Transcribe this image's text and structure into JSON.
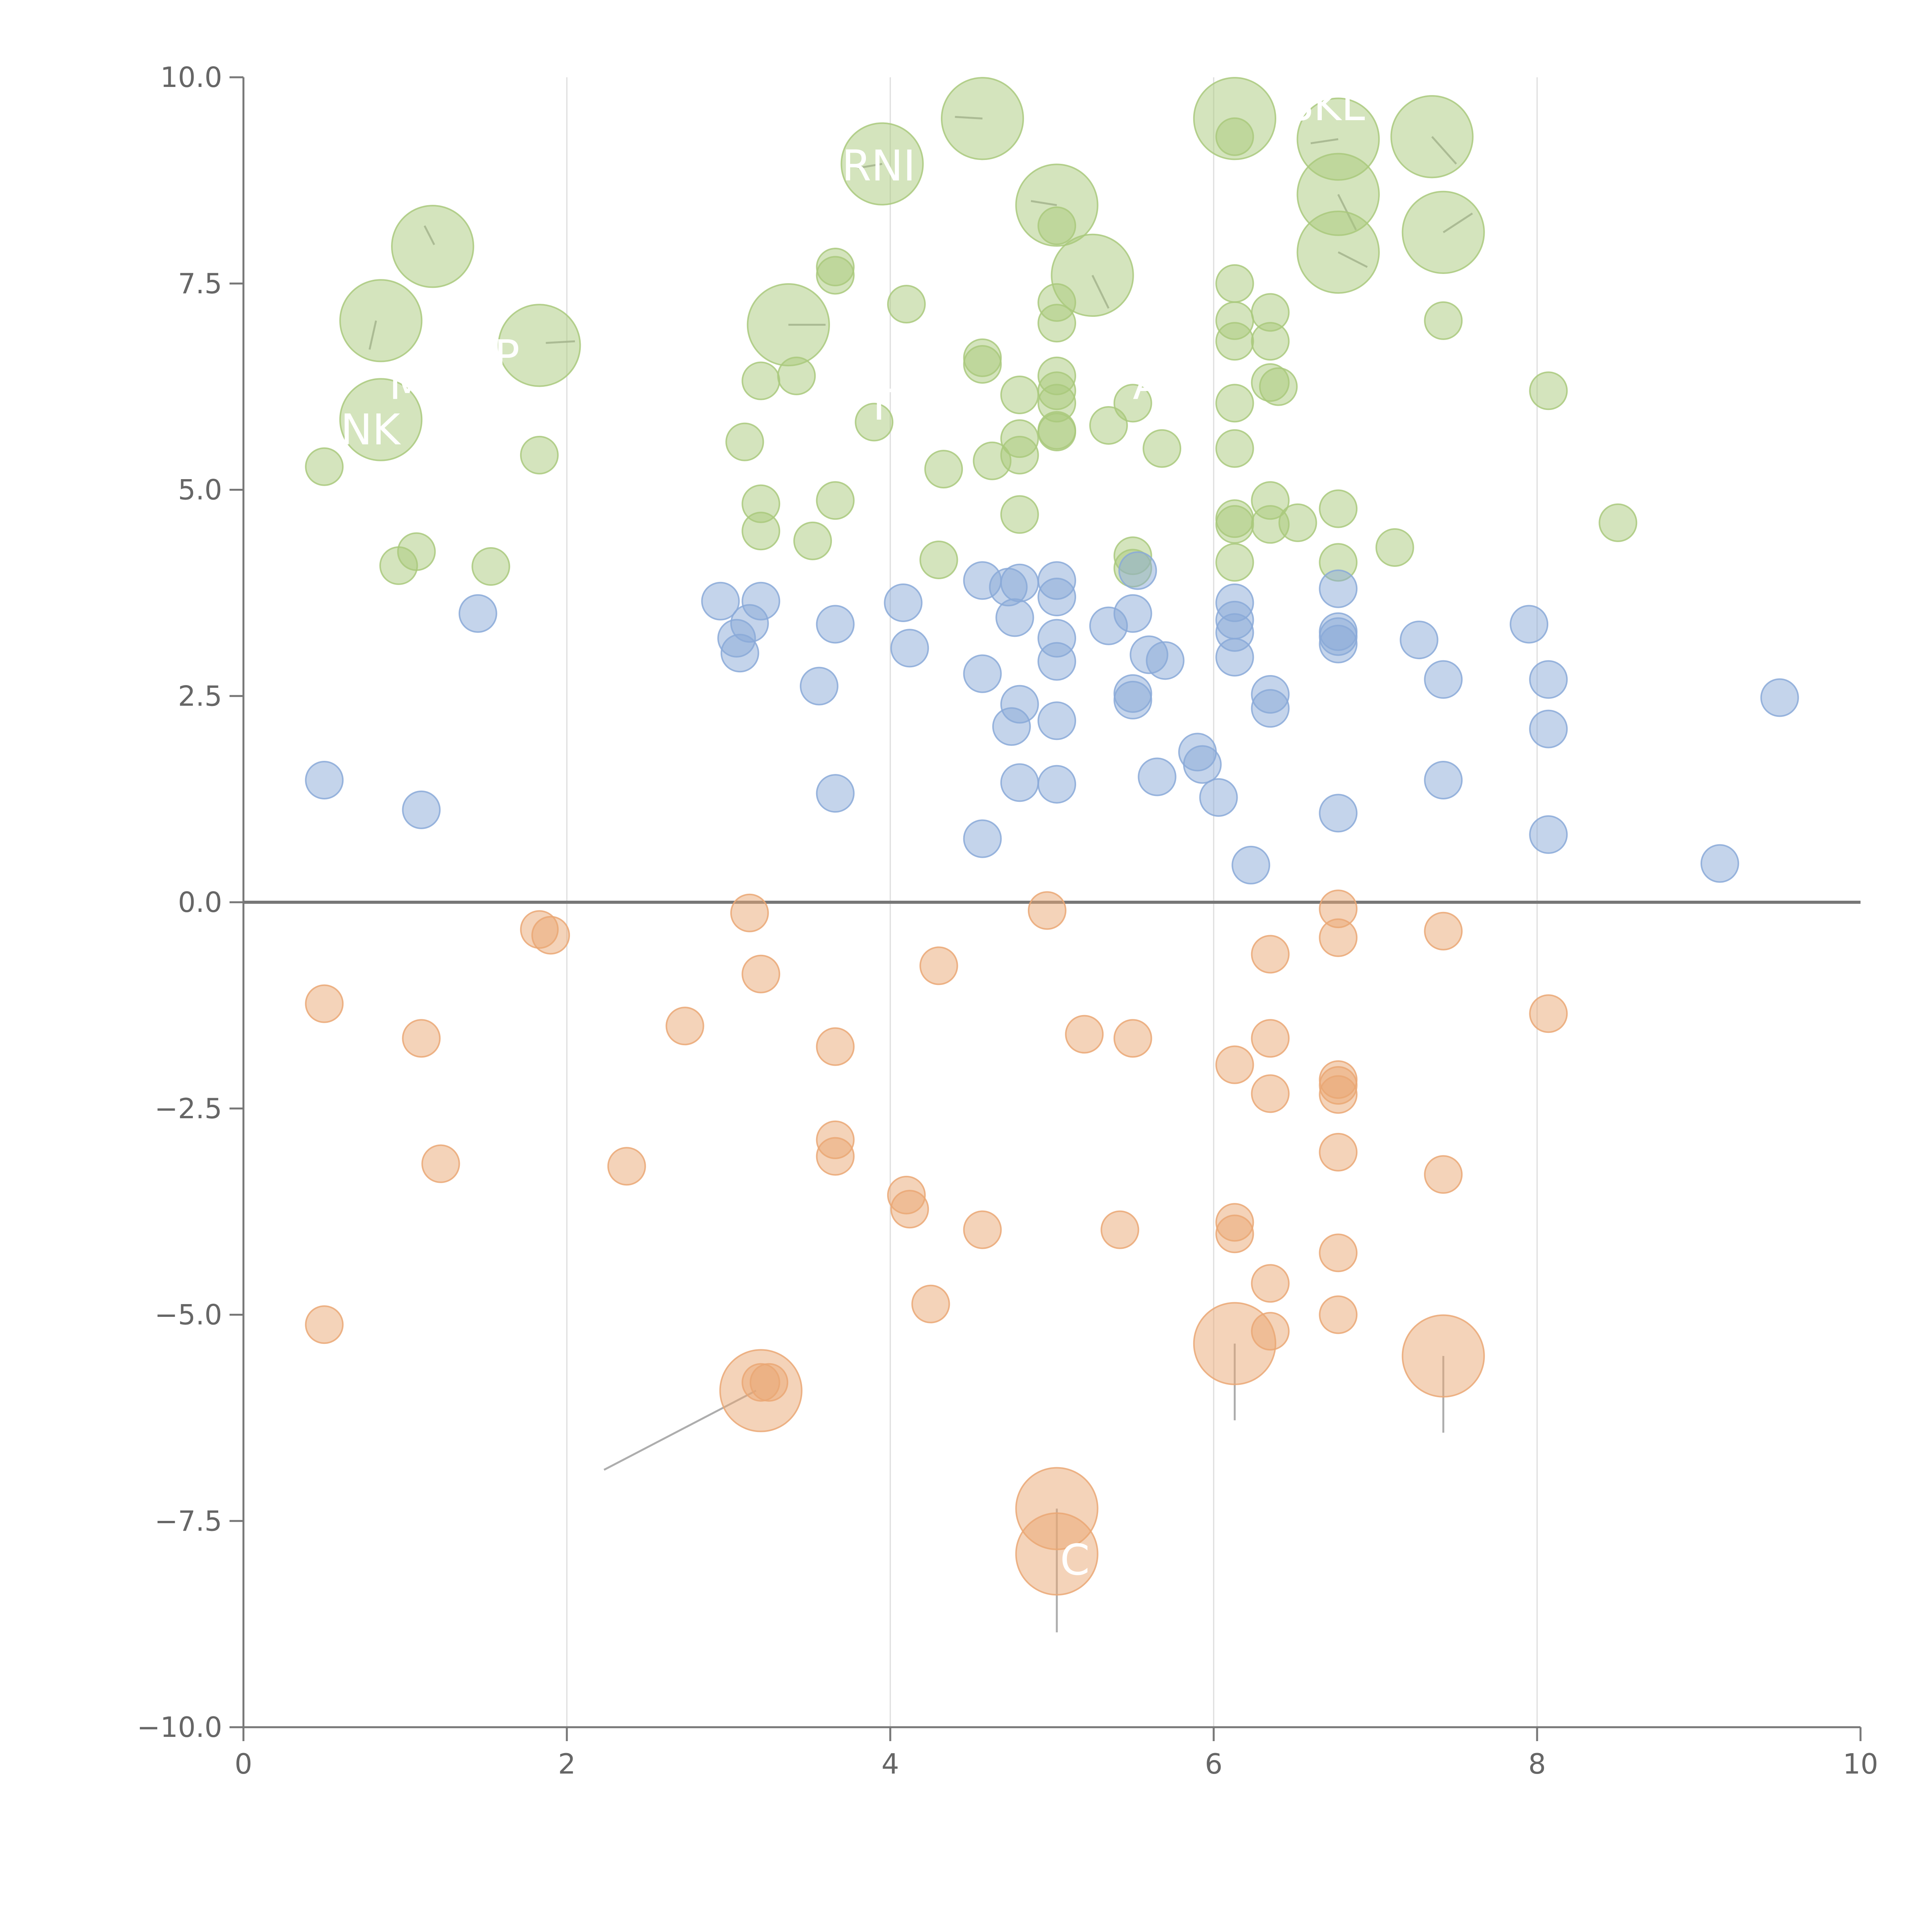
{
  "chart_data": {
    "type": "scatter",
    "title": "",
    "xlabel": "",
    "ylabel": "",
    "xlim": [
      0,
      10
    ],
    "ylim": [
      -10,
      10
    ],
    "xticks": [
      0,
      2,
      4,
      6,
      8,
      10
    ],
    "xtick_labels": [
      "0",
      "2",
      "4",
      "6",
      "8",
      "10"
    ],
    "yticks": [
      -10,
      -7.5,
      -5,
      -2.5,
      0,
      2.5,
      5,
      7.5,
      10
    ],
    "ytick_labels": [
      "−10.0",
      "−7.5",
      "−5.0",
      "−2.5",
      "0.0",
      "2.5",
      "5.0",
      "7.5",
      "10.0"
    ],
    "vertical_gridlines": [
      2,
      4,
      6,
      8
    ],
    "zero_line": 0,
    "size_scale": "relative bubble size",
    "series": [
      {
        "color": "#a9c97c",
        "points": [
          [
            0.85,
            7.05,
            2.2
          ],
          [
            1.17,
            7.95,
            2.2
          ],
          [
            1.83,
            6.75,
            2.2
          ],
          [
            0.85,
            5.85,
            2.2
          ],
          [
            3.95,
            8.95,
            2.2
          ],
          [
            4.57,
            9.5,
            2.2
          ],
          [
            5.03,
            8.45,
            2.2
          ],
          [
            3.37,
            7.0,
            2.2
          ],
          [
            5.25,
            7.6,
            2.2
          ],
          [
            6.13,
            9.5,
            2.2
          ],
          [
            6.77,
            9.25,
            2.2
          ],
          [
            7.35,
            9.28,
            2.2
          ],
          [
            6.77,
            8.58,
            2.2
          ],
          [
            7.42,
            8.12,
            2.2
          ],
          [
            6.77,
            7.88,
            2.2
          ],
          [
            0.5,
            5.28,
            1
          ],
          [
            0.96,
            4.08,
            1
          ],
          [
            1.07,
            4.25,
            1
          ],
          [
            1.53,
            4.07,
            1
          ],
          [
            1.83,
            5.42,
            1
          ],
          [
            3.1,
            5.58,
            1
          ],
          [
            3.2,
            6.32,
            1
          ],
          [
            3.2,
            4.83,
            1
          ],
          [
            3.2,
            4.5,
            1
          ],
          [
            3.42,
            6.38,
            1
          ],
          [
            3.52,
            4.38,
            1
          ],
          [
            3.66,
            7.7,
            1
          ],
          [
            3.66,
            7.6,
            1
          ],
          [
            3.66,
            4.87,
            1
          ],
          [
            3.9,
            5.82,
            1
          ],
          [
            4.1,
            7.25,
            1
          ],
          [
            4.3,
            4.15,
            1
          ],
          [
            4.33,
            5.25,
            1
          ],
          [
            4.57,
            6.6,
            1
          ],
          [
            4.57,
            6.52,
            1
          ],
          [
            4.63,
            5.35,
            1
          ],
          [
            4.8,
            6.15,
            1
          ],
          [
            4.8,
            5.62,
            1
          ],
          [
            4.8,
            5.42,
            1
          ],
          [
            4.8,
            4.7,
            1
          ],
          [
            5.03,
            8.2,
            1
          ],
          [
            5.03,
            7.27,
            1
          ],
          [
            5.03,
            7.02,
            1
          ],
          [
            5.03,
            6.38,
            1
          ],
          [
            5.03,
            6.2,
            1
          ],
          [
            5.03,
            6.05,
            1
          ],
          [
            5.03,
            5.72,
            1
          ],
          [
            5.03,
            5.7,
            1
          ],
          [
            5.35,
            5.78,
            1
          ],
          [
            5.5,
            6.05,
            1
          ],
          [
            5.5,
            4.2,
            1
          ],
          [
            5.5,
            4.05,
            1
          ],
          [
            5.68,
            5.5,
            1
          ],
          [
            6.13,
            9.28,
            1
          ],
          [
            6.13,
            7.5,
            1
          ],
          [
            6.13,
            7.05,
            1
          ],
          [
            6.13,
            6.8,
            1
          ],
          [
            6.13,
            6.05,
            1
          ],
          [
            6.13,
            5.5,
            1
          ],
          [
            6.13,
            4.65,
            1
          ],
          [
            6.13,
            4.58,
            1
          ],
          [
            6.13,
            4.12,
            1
          ],
          [
            6.35,
            7.15,
            1
          ],
          [
            6.35,
            6.8,
            1
          ],
          [
            6.35,
            6.3,
            1
          ],
          [
            6.35,
            4.87,
            1
          ],
          [
            6.35,
            4.58,
            1
          ],
          [
            6.4,
            6.25,
            1
          ],
          [
            6.52,
            4.6,
            1
          ],
          [
            6.77,
            4.77,
            1
          ],
          [
            6.77,
            4.12,
            1
          ],
          [
            7.12,
            4.3,
            1
          ],
          [
            7.42,
            7.05,
            1
          ],
          [
            8.07,
            6.2,
            1
          ],
          [
            8.5,
            4.6,
            1
          ]
        ]
      },
      {
        "color": "#89a9d8",
        "points": [
          [
            0.5,
            1.48,
            1
          ],
          [
            1.1,
            1.12,
            1
          ],
          [
            1.45,
            3.5,
            1
          ],
          [
            2.95,
            3.65,
            1
          ],
          [
            3.05,
            3.2,
            1
          ],
          [
            3.07,
            3.02,
            1
          ],
          [
            3.13,
            3.38,
            1
          ],
          [
            3.2,
            3.65,
            1
          ],
          [
            3.56,
            2.62,
            1
          ],
          [
            3.66,
            3.37,
            1
          ],
          [
            3.66,
            1.32,
            1
          ],
          [
            4.08,
            3.63,
            1
          ],
          [
            4.12,
            3.08,
            1
          ],
          [
            4.57,
            3.9,
            1
          ],
          [
            4.57,
            2.77,
            1
          ],
          [
            4.57,
            0.77,
            1
          ],
          [
            4.73,
            3.82,
            1
          ],
          [
            4.75,
            2.13,
            1
          ],
          [
            4.77,
            3.45,
            1
          ],
          [
            4.8,
            3.87,
            1
          ],
          [
            4.8,
            2.4,
            1
          ],
          [
            4.8,
            1.45,
            1
          ],
          [
            5.03,
            3.9,
            1
          ],
          [
            5.03,
            3.7,
            1
          ],
          [
            5.03,
            3.2,
            1
          ],
          [
            5.03,
            2.92,
            1
          ],
          [
            5.03,
            2.2,
            1
          ],
          [
            5.03,
            1.43,
            1
          ],
          [
            5.35,
            3.35,
            1
          ],
          [
            5.5,
            3.5,
            1
          ],
          [
            5.5,
            2.53,
            1
          ],
          [
            5.5,
            2.45,
            1
          ],
          [
            5.53,
            4.02,
            1
          ],
          [
            5.6,
            3.0,
            1
          ],
          [
            5.65,
            1.52,
            1
          ],
          [
            5.7,
            2.93,
            1
          ],
          [
            5.9,
            1.82,
            1
          ],
          [
            5.93,
            1.67,
            1
          ],
          [
            6.03,
            1.27,
            1
          ],
          [
            6.13,
            3.63,
            1
          ],
          [
            6.13,
            3.42,
            1
          ],
          [
            6.13,
            3.27,
            1
          ],
          [
            6.13,
            2.97,
            1
          ],
          [
            6.23,
            0.45,
            1
          ],
          [
            6.35,
            2.52,
            1
          ],
          [
            6.35,
            2.35,
            1
          ],
          [
            6.77,
            3.8,
            1
          ],
          [
            6.77,
            3.28,
            1
          ],
          [
            6.77,
            3.22,
            1
          ],
          [
            6.77,
            3.13,
            1
          ],
          [
            6.77,
            1.08,
            1
          ],
          [
            7.27,
            3.18,
            1
          ],
          [
            7.42,
            2.7,
            1
          ],
          [
            7.42,
            1.48,
            1
          ],
          [
            7.95,
            3.37,
            1
          ],
          [
            8.07,
            2.7,
            1
          ],
          [
            8.07,
            2.1,
            1
          ],
          [
            8.07,
            0.82,
            1
          ],
          [
            9.13,
            0.47,
            1
          ],
          [
            9.5,
            2.48,
            1
          ]
        ]
      },
      {
        "color": "#eaa774",
        "points": [
          [
            3.2,
            -5.92,
            2.2
          ],
          [
            6.13,
            -5.35,
            2.2
          ],
          [
            7.42,
            -5.5,
            2.2
          ],
          [
            5.03,
            -7.35,
            2.2
          ],
          [
            5.03,
            -7.9,
            2.2
          ],
          [
            0.5,
            -1.23,
            1
          ],
          [
            0.5,
            -5.12,
            1
          ],
          [
            1.1,
            -1.65,
            1
          ],
          [
            1.22,
            -3.17,
            1
          ],
          [
            1.83,
            -0.33,
            1
          ],
          [
            1.9,
            -0.4,
            1
          ],
          [
            2.37,
            -3.2,
            1
          ],
          [
            2.73,
            -1.5,
            1
          ],
          [
            3.13,
            -0.13,
            1
          ],
          [
            3.2,
            -0.87,
            1
          ],
          [
            3.2,
            -5.82,
            1
          ],
          [
            3.25,
            -5.82,
            1
          ],
          [
            3.66,
            -1.75,
            1
          ],
          [
            3.66,
            -2.88,
            1
          ],
          [
            3.66,
            -3.08,
            1
          ],
          [
            4.1,
            -3.55,
            1
          ],
          [
            4.12,
            -3.72,
            1
          ],
          [
            4.25,
            -4.87,
            1
          ],
          [
            4.3,
            -0.77,
            1
          ],
          [
            4.57,
            -3.97,
            1
          ],
          [
            4.97,
            -0.1,
            1
          ],
          [
            5.2,
            -1.6,
            1
          ],
          [
            5.42,
            -3.97,
            1
          ],
          [
            5.5,
            -1.65,
            1
          ],
          [
            6.13,
            -1.97,
            1
          ],
          [
            6.13,
            -3.88,
            1
          ],
          [
            6.13,
            -4.02,
            1
          ],
          [
            6.35,
            -0.63,
            1
          ],
          [
            6.35,
            -1.65,
            1
          ],
          [
            6.35,
            -2.32,
            1
          ],
          [
            6.35,
            -4.62,
            1
          ],
          [
            6.35,
            -5.2,
            1
          ],
          [
            6.77,
            -0.08,
            1
          ],
          [
            6.77,
            -0.43,
            1
          ],
          [
            6.77,
            -2.15,
            1
          ],
          [
            6.77,
            -2.22,
            1
          ],
          [
            6.77,
            -2.33,
            1
          ],
          [
            6.77,
            -3.03,
            1
          ],
          [
            6.77,
            -4.25,
            1
          ],
          [
            6.77,
            -5.0,
            1
          ],
          [
            7.42,
            -0.35,
            1
          ],
          [
            7.42,
            -3.3,
            1
          ],
          [
            8.07,
            -1.35,
            1
          ]
        ]
      }
    ],
    "labels": [
      {
        "text": "SKL",
        "x": 6.45,
        "y": 9.48
      },
      {
        "text": "RNI",
        "x": 3.7,
        "y": 8.75
      },
      {
        "text": "NK",
        "x": 0.6,
        "y": 5.55
      },
      {
        "text": "M",
        "x": 0.9,
        "y": 6.1
      },
      {
        "text": "P",
        "x": 1.55,
        "y": 6.45
      },
      {
        "text": "T",
        "x": 3.85,
        "y": 5.85
      },
      {
        "text": "A",
        "x": 5.5,
        "y": 6.1
      },
      {
        "text": "C",
        "x": 5.05,
        "y": -8.15
      }
    ],
    "leader_lines": [
      {
        "x1": 1.12,
        "y1": 8.2,
        "x2": 1.18,
        "y2": 7.97
      },
      {
        "x1": 0.82,
        "y1": 7.05,
        "x2": 0.78,
        "y2": 6.7
      },
      {
        "x1": 1.87,
        "y1": 6.78,
        "x2": 2.05,
        "y2": 6.8
      },
      {
        "x1": 3.37,
        "y1": 7.0,
        "x2": 3.6,
        "y2": 7.0
      },
      {
        "x1": 3.95,
        "y1": 8.95,
        "x2": 3.8,
        "y2": 8.9
      },
      {
        "x1": 4.57,
        "y1": 9.5,
        "x2": 4.4,
        "y2": 9.52
      },
      {
        "x1": 5.03,
        "y1": 8.45,
        "x2": 4.87,
        "y2": 8.5
      },
      {
        "x1": 5.25,
        "y1": 7.6,
        "x2": 5.35,
        "y2": 7.2
      },
      {
        "x1": 6.77,
        "y1": 9.25,
        "x2": 6.6,
        "y2": 9.2
      },
      {
        "x1": 7.35,
        "y1": 9.28,
        "x2": 7.5,
        "y2": 8.95
      },
      {
        "x1": 6.77,
        "y1": 8.58,
        "x2": 6.88,
        "y2": 8.15
      },
      {
        "x1": 7.42,
        "y1": 8.12,
        "x2": 7.6,
        "y2": 8.35
      },
      {
        "x1": 6.77,
        "y1": 7.88,
        "x2": 6.95,
        "y2": 7.7
      },
      {
        "x1": 3.17,
        "y1": -5.92,
        "x2": 2.23,
        "y2": -6.88
      },
      {
        "x1": 6.13,
        "y1": -5.35,
        "x2": 6.13,
        "y2": -6.28
      },
      {
        "x1": 7.42,
        "y1": -5.5,
        "x2": 7.42,
        "y2": -6.43
      },
      {
        "x1": 5.03,
        "y1": -7.35,
        "x2": 5.03,
        "y2": -8.85
      }
    ]
  }
}
